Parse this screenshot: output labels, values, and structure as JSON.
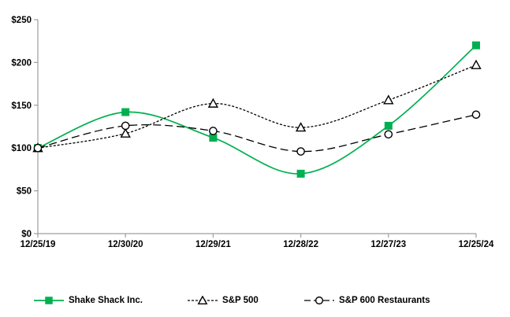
{
  "chart_data": {
    "type": "line",
    "title": "",
    "smoothed": true,
    "grid": false,
    "legend_position": "bottom",
    "axis_color": "#9d9d9d",
    "categories": [
      "12/25/19",
      "12/30/20",
      "12/29/21",
      "12/28/22",
      "12/27/23",
      "12/25/24"
    ],
    "series": [
      {
        "name": "Shake Shack Inc.",
        "values": [
          100,
          142,
          112,
          70,
          126,
          220
        ],
        "color": "#00B050",
        "line_style": "solid",
        "marker": "square"
      },
      {
        "name": "S&P 500",
        "values": [
          100,
          117,
          152,
          124,
          156,
          197
        ],
        "color": "#000000",
        "line_style": "dotted",
        "marker": "triangle"
      },
      {
        "name": "S&P 600 Restaurants",
        "values": [
          100,
          126,
          120,
          96,
          116,
          139
        ],
        "color": "#000000",
        "line_style": "dashed",
        "marker": "circle"
      }
    ],
    "y_axis": {
      "min": 0,
      "max": 250,
      "step": 50,
      "tick_labels": [
        "$0",
        "$50",
        "$100",
        "$150",
        "$200",
        "$250"
      ]
    },
    "x_axis": {
      "tick_labels": [
        "12/25/19",
        "12/30/20",
        "12/29/21",
        "12/28/22",
        "12/27/23",
        "12/25/24"
      ]
    }
  }
}
